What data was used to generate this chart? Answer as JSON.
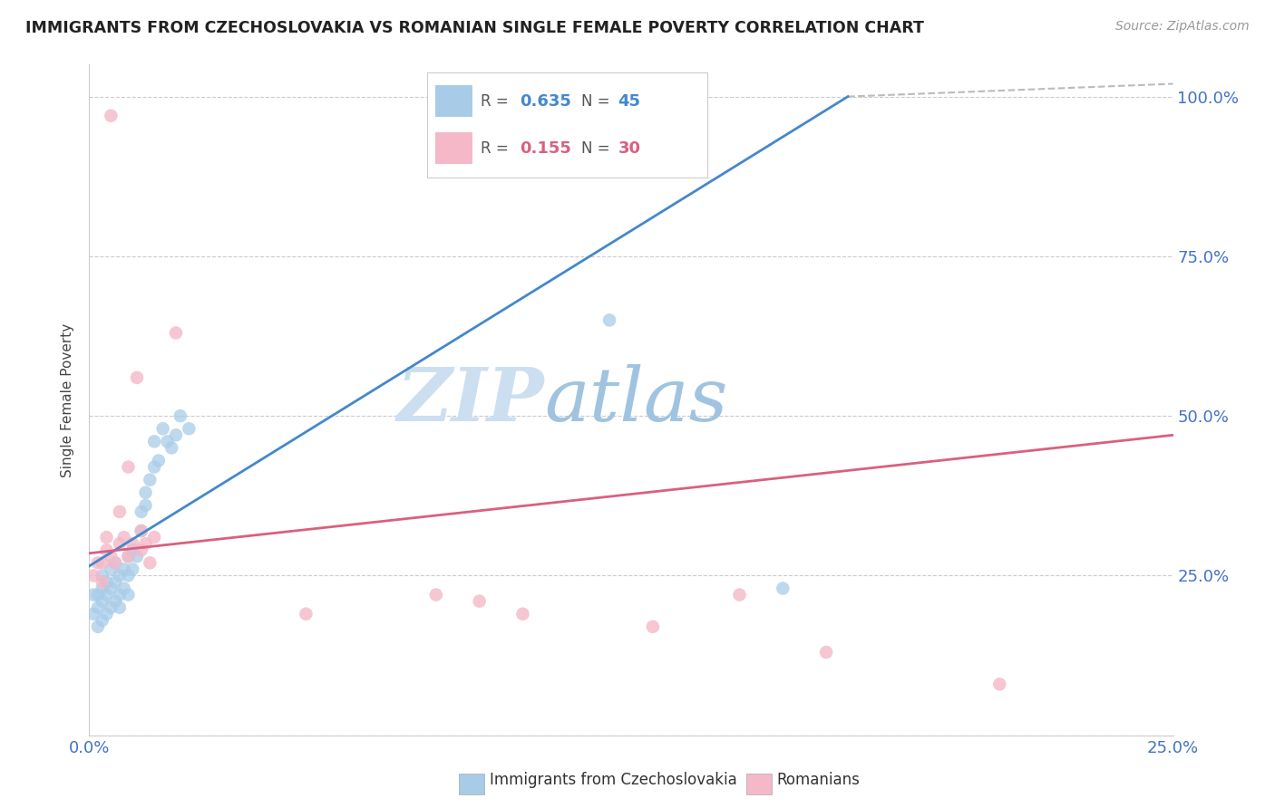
{
  "title": "IMMIGRANTS FROM CZECHOSLOVAKIA VS ROMANIAN SINGLE FEMALE POVERTY CORRELATION CHART",
  "source": "Source: ZipAtlas.com",
  "ylabel": "Single Female Poverty",
  "legend_blue_R": "0.635",
  "legend_blue_N": "45",
  "legend_pink_R": "0.155",
  "legend_pink_N": "30",
  "legend_blue_label": "Immigrants from Czechoslovakia",
  "legend_pink_label": "Romanians",
  "blue_color": "#a8cce8",
  "pink_color": "#f4b8c8",
  "blue_line_color": "#4488cc",
  "pink_line_color": "#d96080",
  "dashed_line_color": "#bbbbbb",
  "zip_color": "#ccdff0",
  "atlas_color": "#a0c4e0",
  "xlim": [
    0.0,
    0.25
  ],
  "ylim": [
    0.0,
    1.05
  ],
  "blue_scatter_x": [
    0.001,
    0.001,
    0.002,
    0.002,
    0.002,
    0.003,
    0.003,
    0.003,
    0.003,
    0.004,
    0.004,
    0.004,
    0.005,
    0.005,
    0.005,
    0.006,
    0.006,
    0.006,
    0.007,
    0.007,
    0.007,
    0.008,
    0.008,
    0.009,
    0.009,
    0.009,
    0.01,
    0.01,
    0.011,
    0.012,
    0.012,
    0.013,
    0.013,
    0.014,
    0.015,
    0.015,
    0.016,
    0.017,
    0.018,
    0.019,
    0.02,
    0.021,
    0.023,
    0.12,
    0.16
  ],
  "blue_scatter_y": [
    0.19,
    0.22,
    0.17,
    0.2,
    0.22,
    0.18,
    0.21,
    0.23,
    0.25,
    0.19,
    0.22,
    0.24,
    0.2,
    0.23,
    0.26,
    0.21,
    0.24,
    0.27,
    0.2,
    0.22,
    0.25,
    0.23,
    0.26,
    0.22,
    0.25,
    0.28,
    0.26,
    0.29,
    0.28,
    0.32,
    0.35,
    0.36,
    0.38,
    0.4,
    0.42,
    0.46,
    0.43,
    0.48,
    0.46,
    0.45,
    0.47,
    0.5,
    0.48,
    0.65,
    0.23
  ],
  "pink_scatter_x": [
    0.001,
    0.002,
    0.003,
    0.003,
    0.004,
    0.004,
    0.005,
    0.005,
    0.006,
    0.007,
    0.007,
    0.008,
    0.009,
    0.009,
    0.01,
    0.011,
    0.012,
    0.012,
    0.013,
    0.014,
    0.015,
    0.05,
    0.08,
    0.09,
    0.1,
    0.13,
    0.15,
    0.17,
    0.21,
    0.02
  ],
  "pink_scatter_y": [
    0.25,
    0.27,
    0.24,
    0.27,
    0.29,
    0.31,
    0.28,
    0.97,
    0.27,
    0.3,
    0.35,
    0.31,
    0.28,
    0.42,
    0.3,
    0.56,
    0.29,
    0.32,
    0.3,
    0.27,
    0.31,
    0.19,
    0.22,
    0.21,
    0.19,
    0.17,
    0.22,
    0.13,
    0.08,
    0.63
  ],
  "blue_line_x0": 0.0,
  "blue_line_y0": 0.265,
  "blue_line_x1": 0.175,
  "blue_line_y1": 1.0,
  "pink_line_x0": 0.0,
  "pink_line_y0": 0.285,
  "pink_line_x1": 0.25,
  "pink_line_y1": 0.47,
  "dash_line_x0": 0.175,
  "dash_line_y0": 1.0,
  "dash_line_x1": 0.25,
  "dash_line_y1": 1.02
}
